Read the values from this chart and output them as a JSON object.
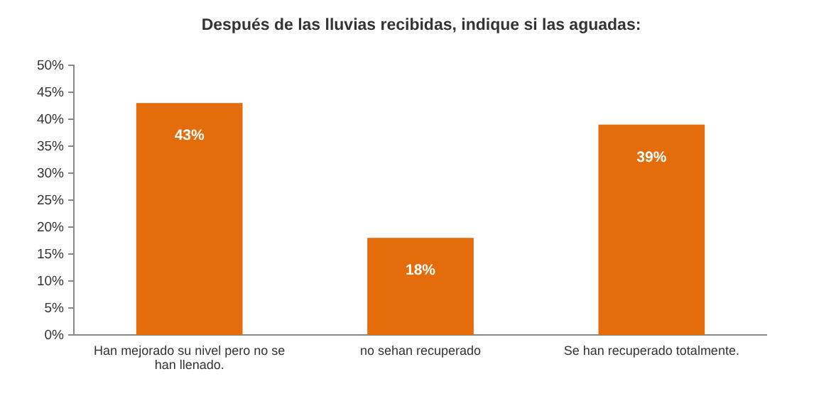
{
  "chart_data": {
    "type": "bar",
    "title": "Después de las lluvias recibidas, indique si las aguadas:",
    "categories": [
      "Han mejorado su nivel pero no se han llenado.",
      "no sehan recuperado",
      "Se han recuperado totalmente."
    ],
    "values": [
      43,
      18,
      39
    ],
    "color": "#e46c0a",
    "data_labels": true,
    "value_labels": [
      "43%",
      "18%",
      "39%"
    ],
    "ylim": [
      0,
      50
    ],
    "yticks": [
      {
        "value": 0,
        "label": "0%"
      },
      {
        "value": 5,
        "label": "5%"
      },
      {
        "value": 10,
        "label": "10%"
      },
      {
        "value": 15,
        "label": "15%"
      },
      {
        "value": 20,
        "label": "20%"
      },
      {
        "value": 25,
        "label": "25%"
      },
      {
        "value": 30,
        "label": "30%"
      },
      {
        "value": 35,
        "label": "35%"
      },
      {
        "value": 40,
        "label": "40%"
      },
      {
        "value": 45,
        "label": "45%"
      },
      {
        "value": 50,
        "label": "50%"
      }
    ],
    "grid": false
  }
}
